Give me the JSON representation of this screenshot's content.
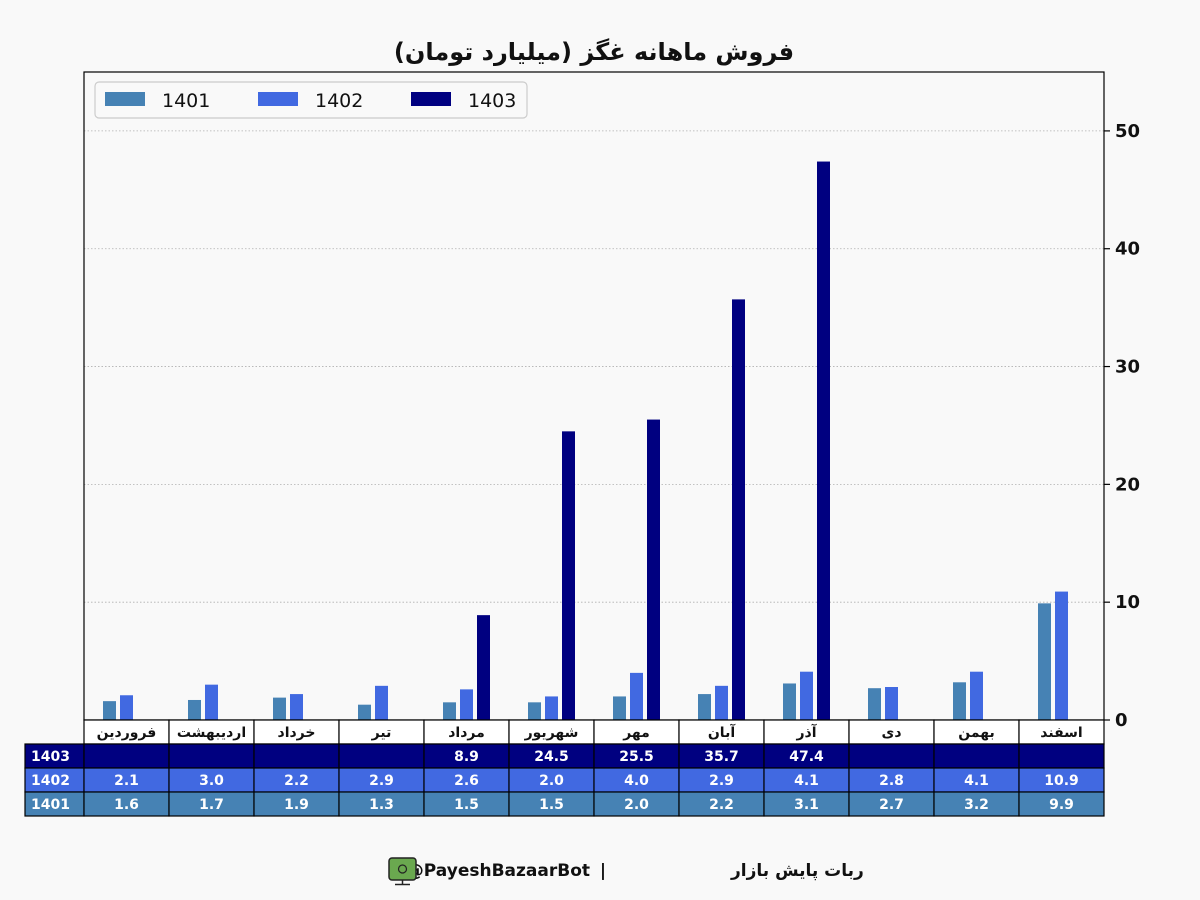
{
  "chart_data": {
    "type": "bar",
    "title": "فروش ماهانه غگز (میلیارد تومان)",
    "categories": [
      "فروردین",
      "اردیبهشت",
      "خرداد",
      "تیر",
      "مرداد",
      "شهریور",
      "مهر",
      "آبان",
      "آذر",
      "دی",
      "بهمن",
      "اسفند"
    ],
    "series": [
      {
        "name": "1401",
        "color": "#4682b4",
        "values": [
          1.6,
          1.7,
          1.9,
          1.3,
          1.5,
          1.5,
          2.0,
          2.2,
          3.1,
          2.7,
          3.2,
          9.9
        ]
      },
      {
        "name": "1402",
        "color": "#4169e1",
        "values": [
          2.1,
          3.0,
          2.2,
          2.9,
          2.6,
          2.0,
          4.0,
          2.9,
          4.1,
          2.8,
          4.1,
          10.9
        ]
      },
      {
        "name": "1403",
        "color": "#000080",
        "values": [
          null,
          null,
          null,
          null,
          8.9,
          24.5,
          25.5,
          35.7,
          47.4,
          null,
          null,
          null
        ]
      }
    ],
    "ylim": [
      0,
      55
    ],
    "yticks": [
      0,
      10,
      20,
      30,
      40,
      50
    ],
    "y_axis_side": "right",
    "grid": "horizontal dotted",
    "legend_position": "top-left",
    "table": {
      "rows": [
        {
          "label": "1403",
          "color": "#000080",
          "cells": [
            "",
            "",
            "",
            "",
            "8.9",
            "24.5",
            "25.5",
            "35.7",
            "47.4",
            "",
            "",
            ""
          ]
        },
        {
          "label": "1402",
          "color": "#4169e1",
          "cells": [
            "2.1",
            "3.0",
            "2.2",
            "2.9",
            "2.6",
            "2.0",
            "4.0",
            "2.9",
            "4.1",
            "2.8",
            "4.1",
            "10.9"
          ]
        },
        {
          "label": "1401",
          "color": "#4682b4",
          "cells": [
            "1.6",
            "1.7",
            "1.9",
            "1.3",
            "1.5",
            "1.5",
            "2.0",
            "2.2",
            "3.1",
            "2.7",
            "3.2",
            "9.9"
          ]
        }
      ]
    }
  },
  "footer": {
    "handle": "@PayeshBazaarBot",
    "separator": "|",
    "bot_name": "ربات پایش بازار",
    "icon": "monitor-icon",
    "icon_color": "#6aa84f"
  }
}
